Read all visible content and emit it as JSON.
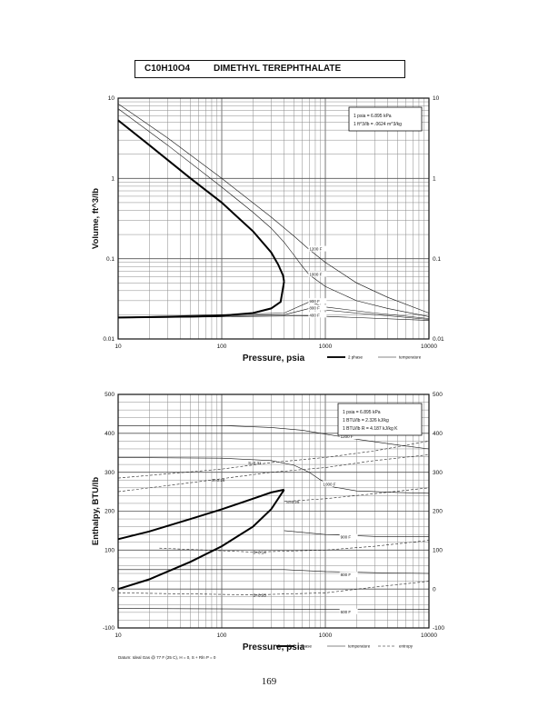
{
  "title": {
    "formula": "C10H10O4",
    "name": "DIMETHYL TEREPHTHALATE"
  },
  "page_number": "169",
  "chart_data": [
    {
      "type": "line",
      "x_scale": "log",
      "y_scale": "log",
      "xlim": [
        10,
        10000
      ],
      "ylim": [
        0.01,
        10
      ],
      "xlabel": "Pressure, psia",
      "ylabel": "Volume, ft^3/lb",
      "x_ticks": [
        "10",
        "100",
        "1000",
        "10000"
      ],
      "y_ticks": [
        "0.01",
        "0.1",
        "1",
        "10"
      ],
      "grid": true,
      "info_box": [
        "1 psia = 6.895 kPa",
        "1 ft^3/lb = .0624 m^3/kg"
      ],
      "legend": {
        "position": "bottom-right",
        "entries": [
          "2 phase",
          "temperature"
        ]
      },
      "two_phase": [
        {
          "name": "sat-vapor",
          "points": [
            [
              10,
              5.3
            ],
            [
              20,
              2.6
            ],
            [
              50,
              1.0
            ],
            [
              100,
              0.5
            ],
            [
              200,
              0.22
            ],
            [
              300,
              0.12
            ],
            [
              350,
              0.085
            ],
            [
              390,
              0.062
            ],
            [
              400,
              0.052
            ]
          ]
        },
        {
          "name": "sat-liquid",
          "points": [
            [
              10,
              0.0185
            ],
            [
              50,
              0.019
            ],
            [
              100,
              0.0195
            ],
            [
              200,
              0.021
            ],
            [
              300,
              0.024
            ],
            [
              370,
              0.029
            ],
            [
              400,
              0.052
            ]
          ]
        }
      ],
      "temperature_series": [
        {
          "name": "1200 F",
          "label_at": [
            700,
            0.13
          ],
          "points": [
            [
              10,
              8.5
            ],
            [
              30,
              3.2
            ],
            [
              100,
              1.0
            ],
            [
              300,
              0.33
            ],
            [
              500,
              0.19
            ],
            [
              700,
              0.13
            ],
            [
              1000,
              0.09
            ],
            [
              2000,
              0.05
            ],
            [
              4000,
              0.033
            ],
            [
              10000,
              0.021
            ]
          ]
        },
        {
          "name": "1000 F",
          "label_at": [
            700,
            0.063
          ],
          "points": [
            [
              10,
              7.4
            ],
            [
              30,
              2.6
            ],
            [
              100,
              0.78
            ],
            [
              200,
              0.38
            ],
            [
              300,
              0.24
            ],
            [
              400,
              0.16
            ],
            [
              500,
              0.11
            ],
            [
              600,
              0.08
            ],
            [
              700,
              0.063
            ],
            [
              1000,
              0.045
            ],
            [
              2000,
              0.03
            ],
            [
              4000,
              0.024
            ],
            [
              10000,
              0.019
            ]
          ]
        },
        {
          "name": "900 F",
          "label_at": [
            700,
            0.029
          ],
          "points": [
            [
              10,
              0.0186
            ],
            [
              400,
              0.021
            ],
            [
              700,
              0.029
            ],
            [
              1000,
              0.025
            ],
            [
              3000,
              0.021
            ],
            [
              10000,
              0.018
            ]
          ]
        },
        {
          "name": "800 F",
          "label_at": [
            700,
            0.024
          ],
          "points": [
            [
              10,
              0.0184
            ],
            [
              400,
              0.02
            ],
            [
              700,
              0.024
            ],
            [
              2000,
              0.021
            ],
            [
              10000,
              0.0175
            ]
          ]
        },
        {
          "name": "400 F",
          "label_at": [
            700,
            0.0195
          ],
          "points": [
            [
              10,
              0.0182
            ],
            [
              700,
              0.0195
            ],
            [
              10000,
              0.017
            ]
          ]
        }
      ]
    },
    {
      "type": "line",
      "x_scale": "log",
      "y_scale": "linear",
      "xlim": [
        10,
        10000
      ],
      "ylim": [
        -100,
        500
      ],
      "xlabel": "Pressure, psia",
      "ylabel": "Enthalpy, BTU/lb",
      "x_ticks": [
        "10",
        "100",
        "1000",
        "10000"
      ],
      "y_ticks": [
        "-100",
        "0",
        "100",
        "200",
        "300",
        "400",
        "500"
      ],
      "grid": true,
      "info_box": [
        "1 psia = 6.895 kPa",
        "1 BTU/lb = 2.326 kJ/kg",
        "1 BTU/lb R = 4.187 kJ/kg K"
      ],
      "footnote": "Datum: Ideal Gas @ 77 F (25 C), H = 0, S + Rln P = 0",
      "legend": {
        "position": "bottom-right",
        "entries": [
          "2 phase",
          "temperature",
          "entropy"
        ]
      },
      "two_phase": [
        {
          "name": "sat-vapor",
          "points": [
            [
              10,
              128
            ],
            [
              20,
              148
            ],
            [
              50,
              180
            ],
            [
              100,
              205
            ],
            [
              200,
              232
            ],
            [
              300,
              248
            ],
            [
              400,
              255
            ]
          ]
        },
        {
          "name": "sat-liquid",
          "points": [
            [
              10,
              0
            ],
            [
              20,
              25
            ],
            [
              50,
              70
            ],
            [
              100,
              110
            ],
            [
              200,
              160
            ],
            [
              300,
              205
            ],
            [
              400,
              255
            ]
          ]
        }
      ],
      "temperature_series": [
        {
          "name": "1200 F",
          "label_at": [
            1400,
            390
          ],
          "points": [
            [
              10,
              420
            ],
            [
              100,
              420
            ],
            [
              300,
              415
            ],
            [
              600,
              408
            ],
            [
              1000,
              398
            ],
            [
              2000,
              385
            ],
            [
              5000,
              370
            ],
            [
              10000,
              360
            ]
          ]
        },
        {
          "name": "1000 F",
          "label_at": [
            950,
            268
          ],
          "points": [
            [
              10,
              338
            ],
            [
              100,
              336
            ],
            [
              300,
              330
            ],
            [
              500,
              318
            ],
            [
              700,
              300
            ],
            [
              900,
              280
            ],
            [
              1200,
              262
            ],
            [
              2000,
              252
            ],
            [
              5000,
              248
            ],
            [
              10000,
              246
            ]
          ]
        },
        {
          "name": "900 F",
          "label_at": [
            1400,
            132
          ],
          "points": [
            [
              400,
              150
            ],
            [
              1000,
              140
            ],
            [
              3000,
              135
            ],
            [
              10000,
              135
            ]
          ]
        },
        {
          "name": "800 F",
          "label_at": [
            1400,
            35
          ],
          "points": [
            [
              10,
              50
            ],
            [
              400,
              50
            ],
            [
              1000,
              45
            ],
            [
              3000,
              42
            ],
            [
              10000,
              40
            ]
          ]
        },
        {
          "name": "600 F",
          "label_at": [
            1400,
            -60
          ],
          "points": [
            [
              10,
              -50
            ],
            [
              1000,
              -52
            ],
            [
              10000,
              -52
            ]
          ]
        }
      ],
      "entropy_series": [
        {
          "name": "S=0.31",
          "label_at": [
            180,
            325
          ],
          "points": [
            [
              10,
              285
            ],
            [
              100,
              308
            ],
            [
              300,
              325
            ],
            [
              1000,
              338
            ],
            [
              3000,
              355
            ],
            [
              10000,
              380
            ]
          ]
        },
        {
          "name": "S=0.28",
          "label_at": [
            80,
            280
          ],
          "points": [
            [
              10,
              250
            ],
            [
              80,
              280
            ],
            [
              300,
              300
            ],
            [
              1000,
              312
            ],
            [
              3000,
              330
            ],
            [
              10000,
              345
            ]
          ]
        },
        {
          "name": "S=0.25",
          "label_at": [
            420,
            225
          ],
          "points": [
            [
              400,
              225
            ],
            [
              1000,
              232
            ],
            [
              3000,
              245
            ],
            [
              10000,
              260
            ]
          ]
        },
        {
          "name": "S=0.14",
          "label_at": [
            200,
            95
          ],
          "points": [
            [
              25,
              105
            ],
            [
              200,
              95
            ],
            [
              1000,
              100
            ],
            [
              3000,
              110
            ],
            [
              10000,
              125
            ]
          ]
        },
        {
          "name": "S=0.03",
          "label_at": [
            200,
            -15
          ],
          "points": [
            [
              10,
              -10
            ],
            [
              200,
              -15
            ],
            [
              1000,
              -10
            ],
            [
              3000,
              5
            ],
            [
              10000,
              20
            ]
          ]
        }
      ]
    }
  ]
}
